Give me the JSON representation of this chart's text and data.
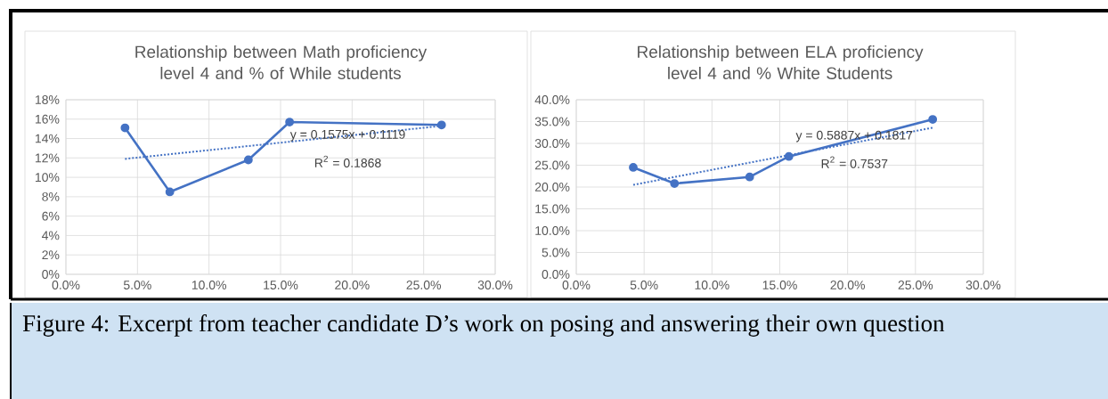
{
  "chart_data": [
    {
      "type": "line",
      "title": "Relationship between Math proficiency level 4 and % of While students",
      "xlim": [
        0,
        30
      ],
      "ylim": [
        0,
        18
      ],
      "xticks": [
        {
          "value": 0,
          "label": "0.0%"
        },
        {
          "value": 5,
          "label": "5.0%"
        },
        {
          "value": 10,
          "label": "10.0%"
        },
        {
          "value": 15,
          "label": "15.0%"
        },
        {
          "value": 20,
          "label": "20.0%"
        },
        {
          "value": 25,
          "label": "25.0%"
        },
        {
          "value": 30,
          "label": "30.0%"
        }
      ],
      "yticks": [
        {
          "value": 0,
          "label": "0%"
        },
        {
          "value": 2,
          "label": "2%"
        },
        {
          "value": 4,
          "label": "4%"
        },
        {
          "value": 6,
          "label": "6%"
        },
        {
          "value": 8,
          "label": "8%"
        },
        {
          "value": 10,
          "label": "10%"
        },
        {
          "value": 12,
          "label": "12%"
        },
        {
          "value": 14,
          "label": "14%"
        },
        {
          "value": 16,
          "label": "16%"
        },
        {
          "value": 18,
          "label": "18%"
        }
      ],
      "grid": true,
      "marker": "circle",
      "series": [
        {
          "color": "#4472c4",
          "x": [
            4.13,
            7.26,
            12.75,
            15.63,
            26.25
          ],
          "values": [
            15.1,
            8.5,
            11.8,
            15.7,
            15.4
          ]
        },
        {
          "type": "line",
          "color": "#4472c4",
          "x": [
            4.13,
            26.25
          ],
          "values": [
            11.9,
            15.3
          ],
          "marker": "none",
          "line_style": "dotted"
        }
      ],
      "annotations": [
        {
          "text": "y = 0.1575x + 0.1119",
          "x": 19.7,
          "y": 14.3
        },
        "R$^{2}$ = 0.1868"
      ]
    },
    {
      "type": "line",
      "title": "Relationship between ELA proficiency level 4 and % White Students",
      "xlim": [
        0,
        30
      ],
      "ylim": [
        0,
        40
      ],
      "xticks": [
        {
          "value": 0,
          "label": "0.0%"
        },
        {
          "value": 5,
          "label": "5.0%"
        },
        {
          "value": 10,
          "label": "10.0%"
        },
        {
          "value": 15,
          "label": "15.0%"
        },
        {
          "value": 20,
          "label": "20.0%"
        },
        {
          "value": 25,
          "label": "25.0%"
        },
        {
          "value": 30,
          "label": "30.0%"
        }
      ],
      "yticks": [
        {
          "value": 0,
          "label": "0.0%"
        },
        {
          "value": 5,
          "label": "5.0%"
        },
        {
          "value": 10,
          "label": "10.0%"
        },
        {
          "value": 15,
          "label": "15.0%"
        },
        {
          "value": 20,
          "label": "20.0%"
        },
        {
          "value": 25,
          "label": "25.0%"
        },
        {
          "value": 30,
          "label": "30.0%"
        },
        {
          "value": 35,
          "label": "35.0%"
        },
        {
          "value": 40,
          "label": "40.0%"
        }
      ],
      "grid": true,
      "marker": "circle",
      "series": [
        {
          "color": "#4472c4",
          "x": [
            4.2,
            7.24,
            12.78,
            15.67,
            26.27
          ],
          "values": [
            24.5,
            20.8,
            22.3,
            27.0,
            35.5
          ]
        },
        {
          "type": "line",
          "color": "#4472c4",
          "x": [
            4.2,
            26.27
          ],
          "values": [
            20.5,
            33.6
          ],
          "marker": "none",
          "line_style": "dotted"
        }
      ],
      "annotations": [
        {
          "text": "y = 0.5887x + 0.1817",
          "x": 20.5,
          "y": 31.6
        },
        "R$^{2}$ = 0.7537",
        "Figure 4: Excerpt from teacher candidate D’s work on posing and answering their own question"
      ]
    }
  ]
}
